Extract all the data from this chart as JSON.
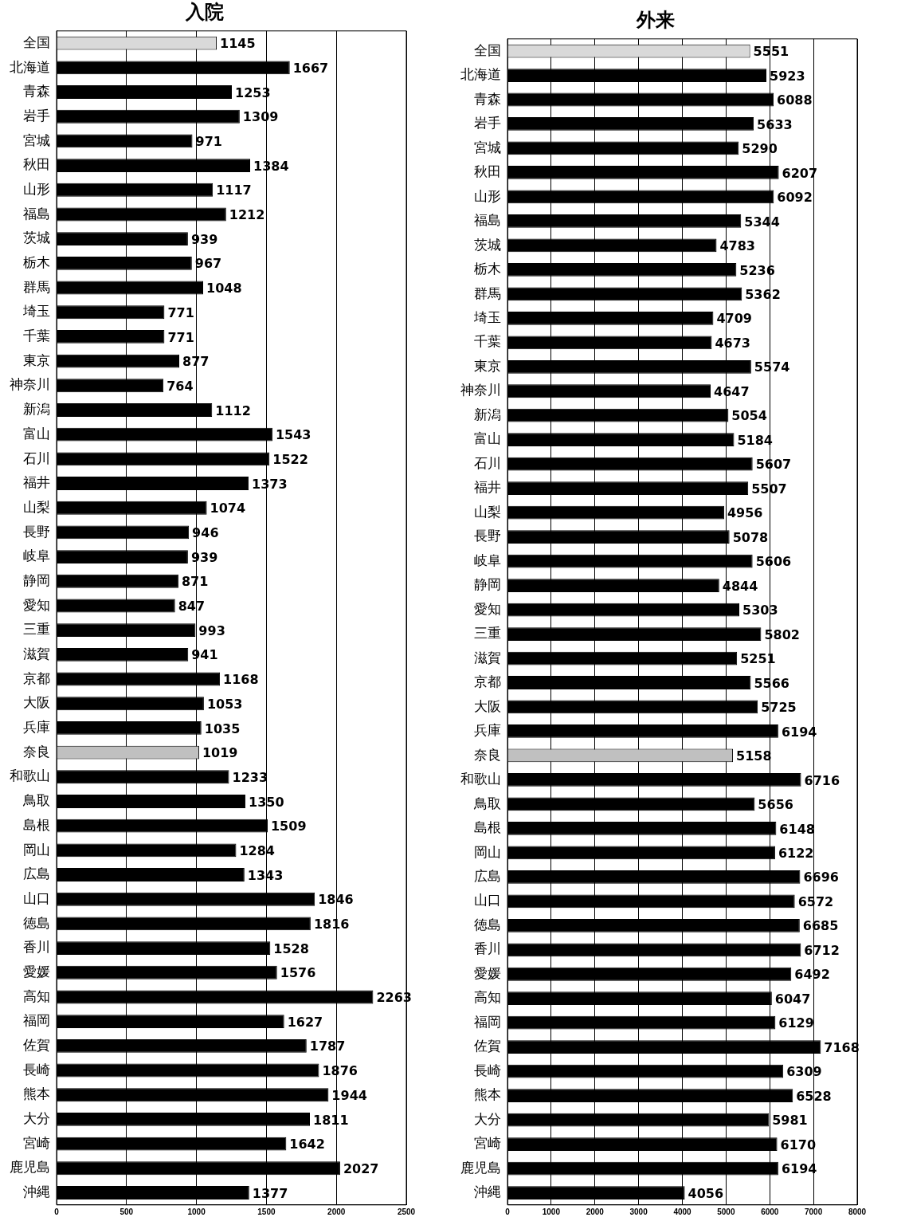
{
  "chart_data": [
    {
      "type": "bar",
      "orientation": "horizontal",
      "title": "入院",
      "categories": [
        "全国",
        "北海道",
        "青森",
        "岩手",
        "宮城",
        "秋田",
        "山形",
        "福島",
        "茨城",
        "栃木",
        "群馬",
        "埼玉",
        "千葉",
        "東京",
        "神奈川",
        "新潟",
        "富山",
        "石川",
        "福井",
        "山梨",
        "長野",
        "岐阜",
        "静岡",
        "愛知",
        "三重",
        "滋賀",
        "京都",
        "大阪",
        "兵庫",
        "奈良",
        "和歌山",
        "鳥取",
        "島根",
        "岡山",
        "広島",
        "山口",
        "徳島",
        "香川",
        "愛媛",
        "高知",
        "福岡",
        "佐賀",
        "長崎",
        "熊本",
        "大分",
        "宮崎",
        "鹿児島",
        "沖縄"
      ],
      "values": [
        1145,
        1667,
        1253,
        1309,
        971,
        1384,
        1117,
        1212,
        939,
        967,
        1048,
        771,
        771,
        877,
        764,
        1112,
        1543,
        1522,
        1373,
        1074,
        946,
        939,
        871,
        847,
        993,
        941,
        1168,
        1053,
        1035,
        1019,
        1233,
        1350,
        1509,
        1284,
        1343,
        1846,
        1816,
        1528,
        1576,
        2263,
        1627,
        1787,
        1876,
        1944,
        1811,
        1642,
        2027,
        1377
      ],
      "colors": [
        "#d9d9d9",
        "#000000",
        "#000000",
        "#000000",
        "#000000",
        "#000000",
        "#000000",
        "#000000",
        "#000000",
        "#000000",
        "#000000",
        "#000000",
        "#000000",
        "#000000",
        "#000000",
        "#000000",
        "#000000",
        "#000000",
        "#000000",
        "#000000",
        "#000000",
        "#000000",
        "#000000",
        "#000000",
        "#000000",
        "#000000",
        "#000000",
        "#000000",
        "#000000",
        "#c0c0c0",
        "#000000",
        "#000000",
        "#000000",
        "#000000",
        "#000000",
        "#000000",
        "#000000",
        "#000000",
        "#000000",
        "#000000",
        "#000000",
        "#000000",
        "#000000",
        "#000000",
        "#000000",
        "#000000",
        "#000000",
        "#000000"
      ],
      "xlim": [
        0,
        2500
      ],
      "xticks": [
        0,
        500,
        1000,
        1500,
        2000,
        2500
      ],
      "grid": "x",
      "data_labels": true,
      "legend": false
    },
    {
      "type": "bar",
      "orientation": "horizontal",
      "title": "外来",
      "categories": [
        "全国",
        "北海道",
        "青森",
        "岩手",
        "宮城",
        "秋田",
        "山形",
        "福島",
        "茨城",
        "栃木",
        "群馬",
        "埼玉",
        "千葉",
        "東京",
        "神奈川",
        "新潟",
        "富山",
        "石川",
        "福井",
        "山梨",
        "長野",
        "岐阜",
        "静岡",
        "愛知",
        "三重",
        "滋賀",
        "京都",
        "大阪",
        "兵庫",
        "奈良",
        "和歌山",
        "鳥取",
        "島根",
        "岡山",
        "広島",
        "山口",
        "徳島",
        "香川",
        "愛媛",
        "高知",
        "福岡",
        "佐賀",
        "長崎",
        "熊本",
        "大分",
        "宮崎",
        "鹿児島",
        "沖縄"
      ],
      "values": [
        5551,
        5923,
        6088,
        5633,
        5290,
        6207,
        6092,
        5344,
        4783,
        5236,
        5362,
        4709,
        4673,
        5574,
        4647,
        5054,
        5184,
        5607,
        5507,
        4956,
        5078,
        5606,
        4844,
        5303,
        5802,
        5251,
        5566,
        5725,
        6194,
        5158,
        6716,
        5656,
        6148,
        6122,
        6696,
        6572,
        6685,
        6712,
        6492,
        6047,
        6129,
        7168,
        6309,
        6528,
        5981,
        6170,
        6194,
        4056
      ],
      "colors": [
        "#d9d9d9",
        "#000000",
        "#000000",
        "#000000",
        "#000000",
        "#000000",
        "#000000",
        "#000000",
        "#000000",
        "#000000",
        "#000000",
        "#000000",
        "#000000",
        "#000000",
        "#000000",
        "#000000",
        "#000000",
        "#000000",
        "#000000",
        "#000000",
        "#000000",
        "#000000",
        "#000000",
        "#000000",
        "#000000",
        "#000000",
        "#000000",
        "#000000",
        "#000000",
        "#c0c0c0",
        "#000000",
        "#000000",
        "#000000",
        "#000000",
        "#000000",
        "#000000",
        "#000000",
        "#000000",
        "#000000",
        "#000000",
        "#000000",
        "#000000",
        "#000000",
        "#000000",
        "#000000",
        "#000000",
        "#000000",
        "#000000"
      ],
      "xlim": [
        0,
        8000
      ],
      "xticks": [
        0,
        1000,
        2000,
        3000,
        4000,
        5000,
        6000,
        7000,
        8000
      ],
      "grid": "x",
      "data_labels": true,
      "legend": false
    }
  ]
}
